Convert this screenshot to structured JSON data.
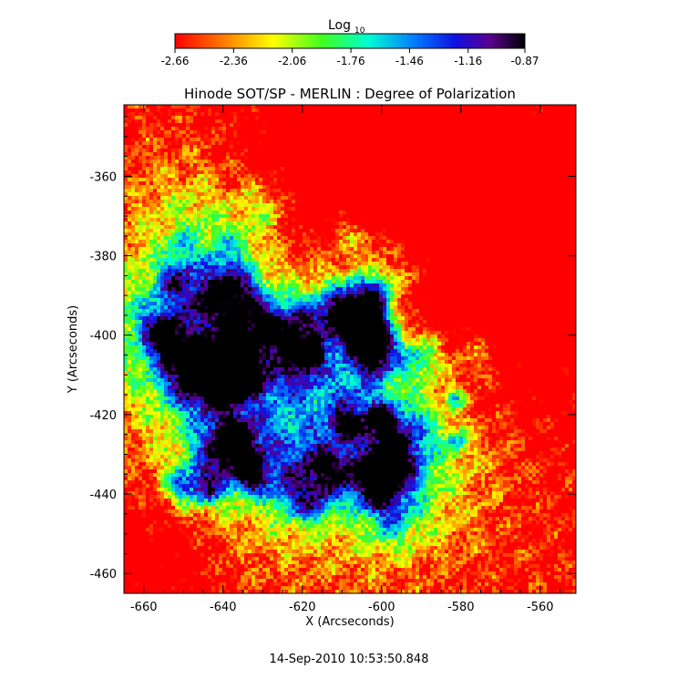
{
  "chart_data": {
    "type": "heatmap",
    "title": "Hinode SOT/SP - MERLIN : Degree of Polarization",
    "xlabel": "X (Arcseconds)",
    "ylabel": "Y (Arcseconds)",
    "xlim": [
      -665,
      -551
    ],
    "ylim": [
      -465,
      -342
    ],
    "x_ticks": [
      -660,
      -640,
      -620,
      -600,
      -580,
      -560
    ],
    "y_ticks": [
      -460,
      -440,
      -420,
      -400,
      -380,
      -360
    ],
    "grid": false,
    "colorbar": {
      "label": "Log",
      "label_subscript": "10",
      "position": "top",
      "range": [
        -2.66,
        -0.87
      ],
      "tick_labels": [
        "-2.66",
        "-2.36",
        "-2.06",
        "-1.76",
        "-1.46",
        "-1.16",
        "-0.87"
      ],
      "tick_values": [
        -2.66,
        -2.36,
        -2.06,
        -1.76,
        -1.46,
        -1.16,
        -0.87
      ],
      "colormap": "rainbow-reversed",
      "colors": [
        "#ff0000",
        "#ff7f00",
        "#ffff00",
        "#00ff00",
        "#00ffff",
        "#0000ff",
        "#4b0082",
        "#000000"
      ]
    },
    "features": [
      {
        "name": "strong polarization (blue/purple) concentrations",
        "x": [
          -660,
          -600
        ],
        "y": [
          -440,
          -380
        ],
        "value_range": [
          -1.46,
          -0.87
        ]
      },
      {
        "name": "moderate polarization (green) region",
        "x": [
          -610,
          -580
        ],
        "y": [
          -455,
          -400
        ],
        "value_range": [
          -2.06,
          -1.66
        ]
      },
      {
        "name": "weak polarization (red) background",
        "x": [
          -600,
          -551
        ],
        "y": [
          -420,
          -342
        ],
        "value_range": [
          -2.66,
          -2.36
        ]
      }
    ]
  },
  "timestamp": "14-Sep-2010 10:53:50.848"
}
